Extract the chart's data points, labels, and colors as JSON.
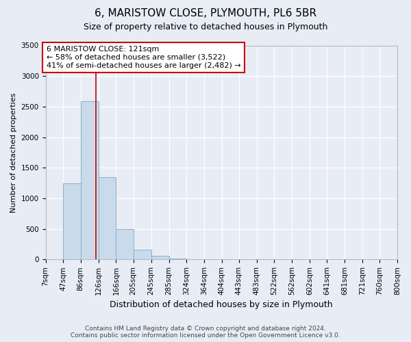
{
  "title": "6, MARISTOW CLOSE, PLYMOUTH, PL6 5BR",
  "subtitle": "Size of property relative to detached houses in Plymouth",
  "xlabel": "Distribution of detached houses by size in Plymouth",
  "ylabel": "Number of detached properties",
  "bar_color": "#c9daea",
  "bar_edge_color": "#8ab0cc",
  "background_color": "#e8edf5",
  "grid_color": "#ffffff",
  "annotation_line_color": "#cc0000",
  "annotation_box_color": "#cc0000",
  "annotation_text": "6 MARISTOW CLOSE: 121sqm\n← 58% of detached houses are smaller (3,522)\n41% of semi-detached houses are larger (2,482) →",
  "property_size": 121,
  "footer": "Contains HM Land Registry data © Crown copyright and database right 2024.\nContains public sector information licensed under the Open Government Licence v3.0.",
  "bin_labels": [
    "7sqm",
    "47sqm",
    "86sqm",
    "126sqm",
    "166sqm",
    "205sqm",
    "245sqm",
    "285sqm",
    "324sqm",
    "364sqm",
    "404sqm",
    "443sqm",
    "483sqm",
    "522sqm",
    "562sqm",
    "602sqm",
    "641sqm",
    "681sqm",
    "721sqm",
    "760sqm",
    "800sqm"
  ],
  "bin_edges": [
    7,
    47,
    86,
    126,
    166,
    205,
    245,
    285,
    324,
    364,
    404,
    443,
    483,
    522,
    562,
    602,
    641,
    681,
    721,
    760,
    800
  ],
  "bar_heights": [
    5,
    1240,
    2590,
    1350,
    500,
    155,
    65,
    15,
    5,
    3,
    1,
    1,
    1,
    0,
    0,
    0,
    0,
    0,
    0,
    0
  ],
  "ylim": [
    0,
    3500
  ],
  "yticks": [
    0,
    500,
    1000,
    1500,
    2000,
    2500,
    3000,
    3500
  ],
  "title_fontsize": 11,
  "subtitle_fontsize": 9,
  "ylabel_fontsize": 8,
  "xlabel_fontsize": 9,
  "tick_fontsize": 7.5,
  "footer_fontsize": 6.5
}
